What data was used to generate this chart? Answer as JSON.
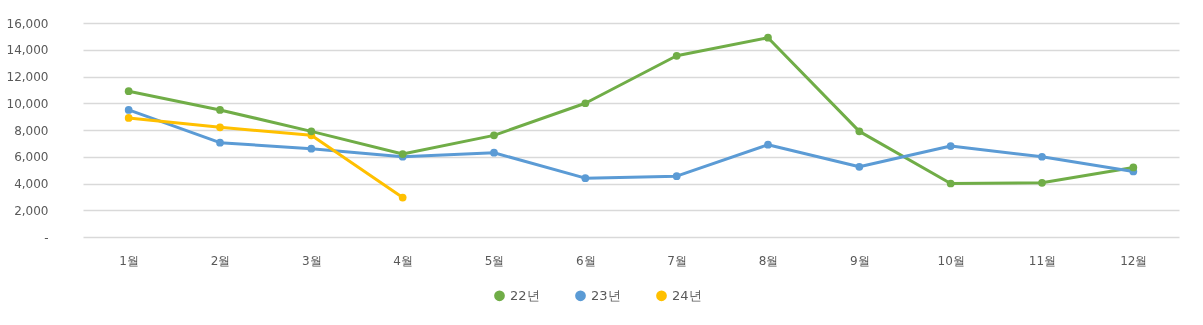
{
  "chart_data": {
    "type": "line",
    "categories": [
      "1월",
      "2월",
      "3월",
      "4월",
      "5월",
      "6월",
      "7월",
      "8월",
      "9월",
      "10월",
      "11월",
      "12월"
    ],
    "series": [
      {
        "name": "22년",
        "color": "#70ad47",
        "values": [
          10900,
          9500,
          7900,
          6200,
          7600,
          10000,
          13550,
          14900,
          7900,
          4000,
          4050,
          5200
        ]
      },
      {
        "name": "23년",
        "color": "#5b9bd5",
        "values": [
          9500,
          7050,
          6600,
          6000,
          6300,
          4400,
          4550,
          6900,
          5250,
          6800,
          6000,
          4900
        ]
      },
      {
        "name": "24년",
        "color": "#ffc000",
        "values": [
          8900,
          8200,
          7600,
          2950,
          null,
          null,
          null,
          null,
          null,
          null,
          null,
          null
        ]
      }
    ],
    "ylim": [
      0,
      16000
    ],
    "yticks": [
      {
        "value": 0,
        "label": "-"
      },
      {
        "value": 2000,
        "label": "2,000"
      },
      {
        "value": 4000,
        "label": "4,000"
      },
      {
        "value": 6000,
        "label": "6,000"
      },
      {
        "value": 8000,
        "label": "8,000"
      },
      {
        "value": 10000,
        "label": "10,000"
      },
      {
        "value": 12000,
        "label": "12,000"
      },
      {
        "value": 14000,
        "label": "14,000"
      },
      {
        "value": 16000,
        "label": "16,000"
      }
    ],
    "grid": "y",
    "legend": "bottom",
    "marker": "circle",
    "line_style": "solid"
  }
}
